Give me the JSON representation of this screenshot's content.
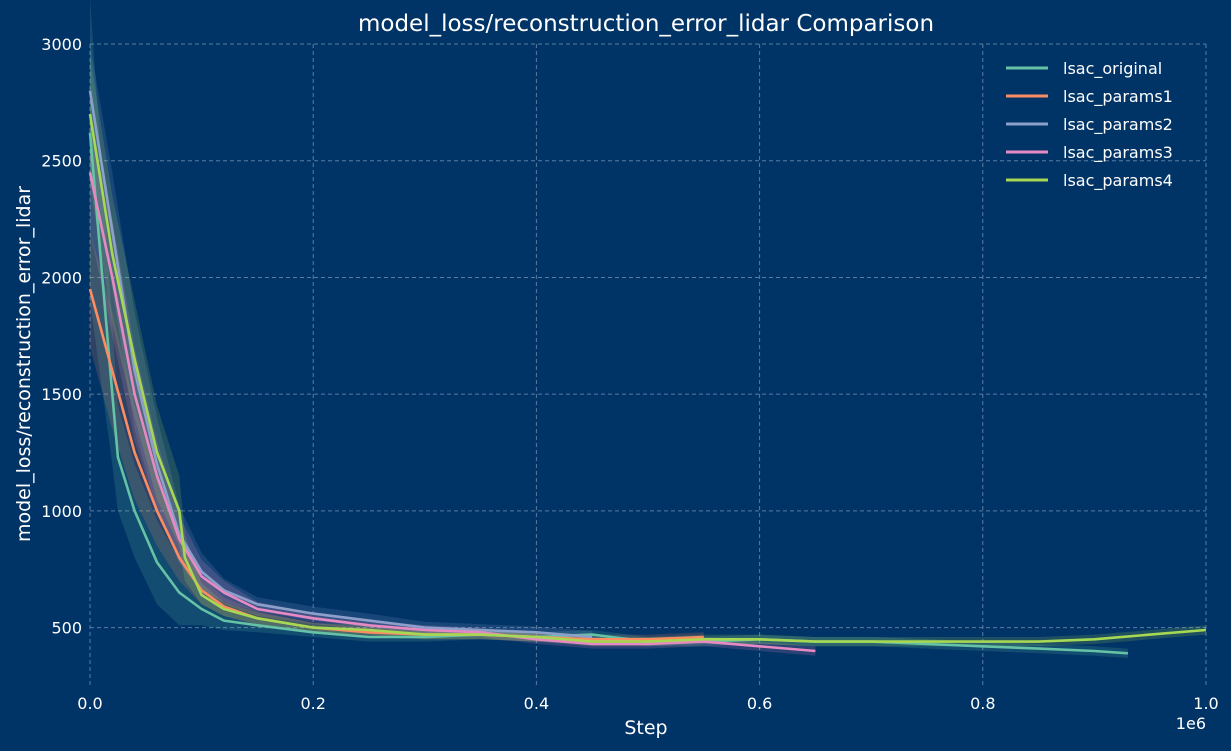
{
  "colors": {
    "background": "#003366",
    "grid": "#6f8fb3",
    "text": "#ffffff"
  },
  "chart_data": {
    "type": "line",
    "title": "model_loss/reconstruction_error_lidar Comparison",
    "xlabel": "Step",
    "ylabel": "model_loss/reconstruction_error_lidar",
    "x_scale_label": "1e6",
    "xlim": [
      0,
      1.0
    ],
    "ylim": [
      250,
      3000
    ],
    "x_ticks": [
      0.0,
      0.2,
      0.4,
      0.6,
      0.8,
      1.0
    ],
    "x_tick_labels": [
      "0.0",
      "0.2",
      "0.4",
      "0.6",
      "0.8",
      "1.0"
    ],
    "y_ticks": [
      500,
      1000,
      1500,
      2000,
      2500,
      3000
    ],
    "y_tick_labels": [
      "500",
      "1000",
      "1500",
      "2000",
      "2500",
      "3000"
    ],
    "grid": true,
    "legend_position": "top-right",
    "series": [
      {
        "name": "lsac_original",
        "color": "#66c2a5",
        "x": [
          0,
          0.02,
          0.025,
          0.04,
          0.06,
          0.08,
          0.1,
          0.12,
          0.15,
          0.2,
          0.25,
          0.3,
          0.35,
          0.4,
          0.45,
          0.5,
          0.55,
          0.6,
          0.65,
          0.7,
          0.75,
          0.8,
          0.85,
          0.9,
          0.93
        ],
        "y": [
          2620,
          1500,
          1230,
          1000,
          780,
          650,
          580,
          530,
          510,
          480,
          460,
          460,
          470,
          460,
          470,
          440,
          440,
          450,
          440,
          440,
          430,
          420,
          410,
          400,
          390
        ],
        "band": [
          [
            1900,
            3200
          ],
          [
            1200,
            1800
          ],
          [
            1000,
            1450
          ],
          [
            800,
            1200
          ],
          [
            600,
            960
          ],
          [
            510,
            790
          ],
          [
            510,
            650
          ],
          [
            490,
            570
          ],
          [
            480,
            540
          ],
          [
            460,
            500
          ],
          [
            440,
            480
          ],
          [
            440,
            480
          ],
          [
            450,
            490
          ],
          [
            440,
            480
          ],
          [
            450,
            490
          ],
          [
            420,
            460
          ],
          [
            420,
            460
          ],
          [
            430,
            470
          ],
          [
            420,
            460
          ],
          [
            420,
            460
          ],
          [
            410,
            450
          ],
          [
            400,
            440
          ],
          [
            390,
            430
          ],
          [
            380,
            420
          ],
          [
            370,
            410
          ]
        ]
      },
      {
        "name": "lsac_params1",
        "color": "#fc8d62",
        "x": [
          0,
          0.02,
          0.04,
          0.06,
          0.08,
          0.1,
          0.12,
          0.15,
          0.2,
          0.25,
          0.3,
          0.35,
          0.4,
          0.45,
          0.5,
          0.55
        ],
        "y": [
          1950,
          1600,
          1250,
          1000,
          800,
          660,
          590,
          540,
          500,
          480,
          470,
          470,
          460,
          450,
          450,
          460
        ],
        "band": [
          [
            1700,
            2200
          ],
          [
            1350,
            1850
          ],
          [
            1050,
            1450
          ],
          [
            850,
            1150
          ],
          [
            700,
            900
          ],
          [
            600,
            720
          ],
          [
            550,
            630
          ],
          [
            510,
            570
          ],
          [
            480,
            520
          ],
          [
            460,
            500
          ],
          [
            450,
            490
          ],
          [
            450,
            490
          ],
          [
            440,
            480
          ],
          [
            430,
            470
          ],
          [
            430,
            470
          ],
          [
            440,
            480
          ]
        ]
      },
      {
        "name": "lsac_params2",
        "color": "#8da0cb",
        "x": [
          0,
          0.02,
          0.04,
          0.06,
          0.08,
          0.1,
          0.12,
          0.15,
          0.2,
          0.25,
          0.3,
          0.35,
          0.4,
          0.45
        ],
        "y": [
          2800,
          2200,
          1600,
          1200,
          900,
          740,
          660,
          600,
          560,
          530,
          500,
          490,
          480,
          460
        ],
        "band": [
          [
            2500,
            3000
          ],
          [
            1950,
            2450
          ],
          [
            1350,
            1850
          ],
          [
            1000,
            1400
          ],
          [
            780,
            1020
          ],
          [
            660,
            820
          ],
          [
            610,
            710
          ],
          [
            570,
            630
          ],
          [
            530,
            590
          ],
          [
            500,
            560
          ],
          [
            475,
            525
          ],
          [
            465,
            515
          ],
          [
            455,
            505
          ],
          [
            435,
            485
          ]
        ]
      },
      {
        "name": "lsac_params3",
        "color": "#e78ac3",
        "x": [
          0,
          0.02,
          0.04,
          0.06,
          0.08,
          0.1,
          0.12,
          0.15,
          0.2,
          0.25,
          0.3,
          0.35,
          0.4,
          0.45,
          0.5,
          0.55,
          0.6,
          0.65
        ],
        "y": [
          2450,
          2000,
          1500,
          1150,
          880,
          720,
          650,
          580,
          540,
          510,
          490,
          480,
          450,
          430,
          430,
          440,
          420,
          400
        ],
        "band": [
          [
            2200,
            2650
          ],
          [
            1750,
            2250
          ],
          [
            1300,
            1700
          ],
          [
            1000,
            1300
          ],
          [
            780,
            980
          ],
          [
            650,
            790
          ],
          [
            600,
            700
          ],
          [
            550,
            610
          ],
          [
            515,
            565
          ],
          [
            490,
            530
          ],
          [
            470,
            510
          ],
          [
            460,
            500
          ],
          [
            430,
            470
          ],
          [
            410,
            450
          ],
          [
            410,
            450
          ],
          [
            420,
            460
          ],
          [
            400,
            440
          ],
          [
            380,
            420
          ]
        ]
      },
      {
        "name": "lsac_params4",
        "color": "#a6d854",
        "x": [
          0,
          0.02,
          0.04,
          0.06,
          0.08,
          0.085,
          0.1,
          0.12,
          0.15,
          0.2,
          0.25,
          0.3,
          0.35,
          0.4,
          0.45,
          0.5,
          0.55,
          0.6,
          0.65,
          0.7,
          0.75,
          0.8,
          0.85,
          0.9,
          0.95,
          1.0
        ],
        "y": [
          2700,
          2100,
          1650,
          1250,
          1000,
          800,
          640,
          580,
          540,
          500,
          490,
          470,
          470,
          460,
          440,
          440,
          450,
          450,
          440,
          440,
          440,
          440,
          440,
          450,
          470,
          490
        ],
        "band": [
          [
            2400,
            2950
          ],
          [
            1800,
            2350
          ],
          [
            1400,
            1900
          ],
          [
            1050,
            1450
          ],
          [
            850,
            1150
          ],
          [
            700,
            900
          ],
          [
            600,
            690
          ],
          [
            550,
            610
          ],
          [
            515,
            565
          ],
          [
            480,
            520
          ],
          [
            470,
            510
          ],
          [
            450,
            490
          ],
          [
            450,
            490
          ],
          [
            440,
            480
          ],
          [
            420,
            460
          ],
          [
            420,
            460
          ],
          [
            430,
            470
          ],
          [
            430,
            470
          ],
          [
            420,
            460
          ],
          [
            420,
            460
          ],
          [
            420,
            460
          ],
          [
            420,
            460
          ],
          [
            420,
            460
          ],
          [
            430,
            470
          ],
          [
            450,
            490
          ],
          [
            470,
            510
          ]
        ]
      }
    ]
  }
}
